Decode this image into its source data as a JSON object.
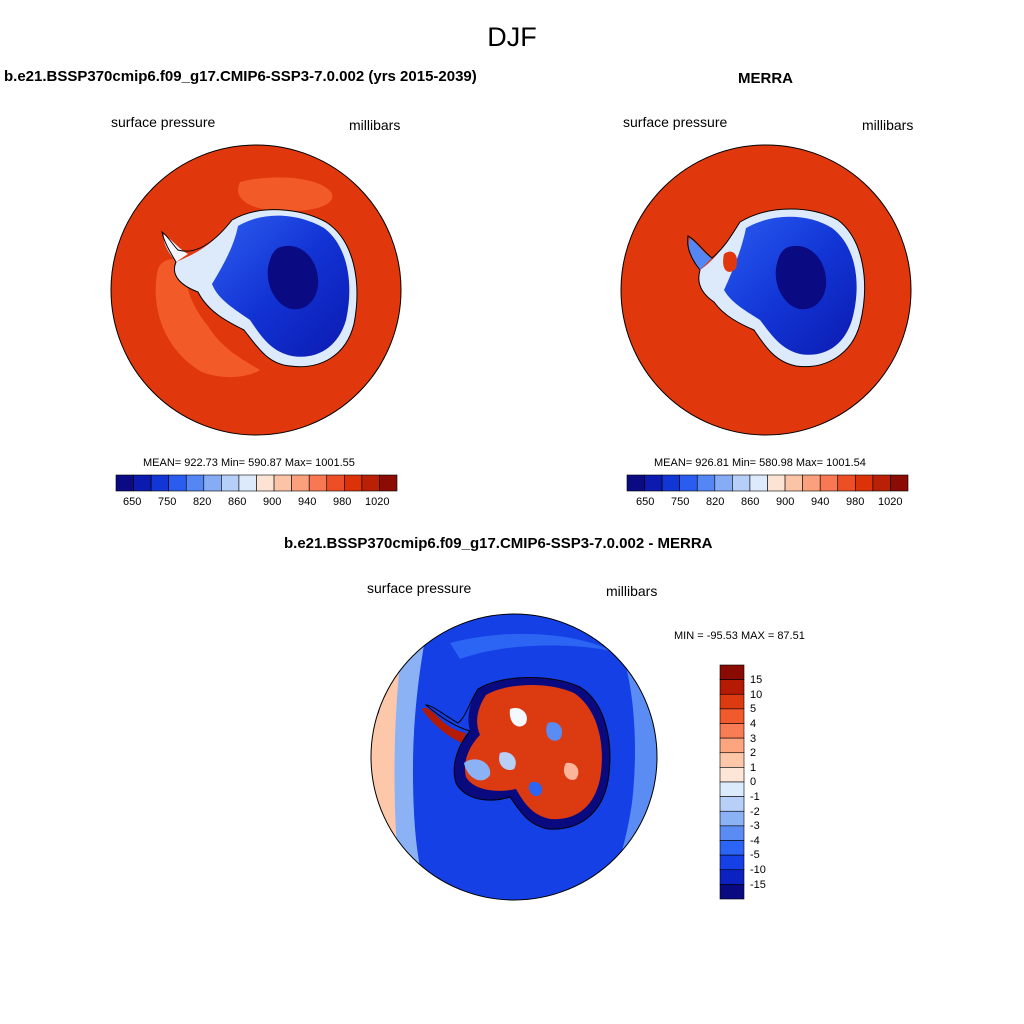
{
  "figure": {
    "title": "DJF"
  },
  "colors": {
    "abs_palette": [
      "#0a0a82",
      "#0c1ab0",
      "#1236d6",
      "#2a5cf0",
      "#5486f4",
      "#86acf6",
      "#b6cff9",
      "#ddeafc",
      "#fde3d4",
      "#fcc4a6",
      "#fba07c",
      "#f77852",
      "#ee4e26",
      "#dc3208",
      "#b92005",
      "#8a0c04"
    ],
    "diff_palette": [
      "#0a0a80",
      "#0c22c0",
      "#1440e6",
      "#2c64f4",
      "#5a8cf4",
      "#8cb2f6",
      "#b8d0f8",
      "#dcebfc",
      "#fde6d8",
      "#fdc8aa",
      "#fca57e",
      "#f87c54",
      "#f05a2c",
      "#dc3a10",
      "#b51a04",
      "#8a0a04"
    ],
    "land_outline": "#000000"
  },
  "panels": [
    {
      "title": "b.e21.BSSP370cmip6.f09_g17.CMIP6-SSP3-7.0.002 (yrs 2015-2039)",
      "variable": "surface pressure",
      "units": "millibars",
      "stats": "MEAN= 922.73  Min= 590.87  Max= 1001.55",
      "colorbar": {
        "labels": [
          "650",
          "750",
          "820",
          "860",
          "900",
          "940",
          "980",
          "1020"
        ]
      }
    },
    {
      "title": "MERRA",
      "variable": "surface pressure",
      "units": "millibars",
      "stats": "MEAN= 926.81  Min= 580.98  Max= 1001.54",
      "colorbar": {
        "labels": [
          "650",
          "750",
          "820",
          "860",
          "900",
          "940",
          "980",
          "1020"
        ]
      }
    },
    {
      "title": "b.e21.BSSP370cmip6.f09_g17.CMIP6-SSP3-7.0.002 - MERRA",
      "variable": "surface pressure",
      "units": "millibars",
      "stats": "MIN = -95.53 MAX =  87.51",
      "colorbar": {
        "labels": [
          "15",
          "10",
          "5",
          "4",
          "3",
          "2",
          "1",
          "0",
          "-1",
          "-2",
          "-3",
          "-4",
          "-5",
          "-10",
          "-15"
        ]
      }
    }
  ]
}
